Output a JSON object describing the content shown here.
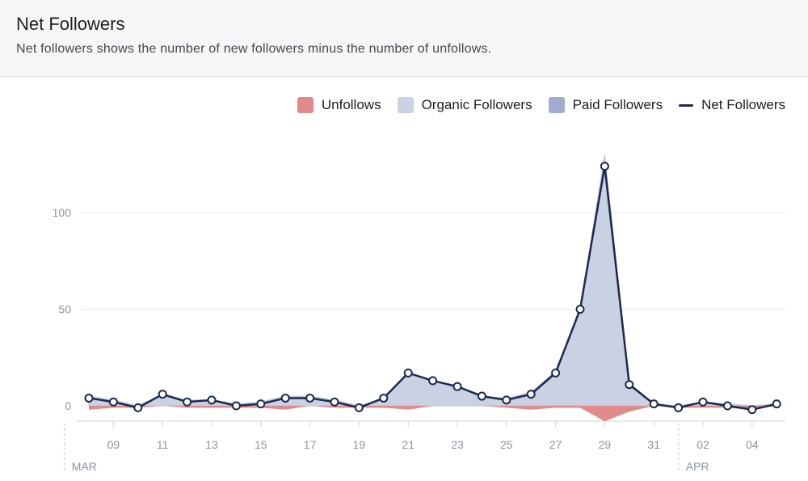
{
  "header": {
    "title": "Net Followers",
    "subtitle": "Net followers shows the number of new followers minus the number of unfollows."
  },
  "legend": [
    {
      "label": "Unfollows",
      "color": "#e08a8a",
      "kind": "box"
    },
    {
      "label": "Organic Followers",
      "color": "#c9d1e3",
      "kind": "box"
    },
    {
      "label": "Paid Followers",
      "color": "#a1adcc",
      "kind": "box"
    },
    {
      "label": "Net Followers",
      "color": "#1b2a4e",
      "kind": "line"
    }
  ],
  "chart_data": {
    "type": "area",
    "ylim": [
      -10,
      130
    ],
    "yticks": [
      0,
      50,
      100
    ],
    "x_ticks": [
      {
        "day": 9,
        "label": "09"
      },
      {
        "day": 11,
        "label": "11"
      },
      {
        "day": 13,
        "label": "13"
      },
      {
        "day": 15,
        "label": "15"
      },
      {
        "day": 17,
        "label": "17"
      },
      {
        "day": 19,
        "label": "19"
      },
      {
        "day": 21,
        "label": "21"
      },
      {
        "day": 23,
        "label": "23"
      },
      {
        "day": 25,
        "label": "25"
      },
      {
        "day": 27,
        "label": "27"
      },
      {
        "day": 29,
        "label": "29"
      },
      {
        "day": 31,
        "label": "31"
      },
      {
        "day": 33,
        "label": "02"
      },
      {
        "day": 35,
        "label": "04"
      }
    ],
    "month_markers": [
      {
        "day": 7.5,
        "label": "MAR"
      },
      {
        "day": 32.5,
        "label": "APR"
      }
    ],
    "x_days": [
      8,
      9,
      10,
      11,
      12,
      13,
      14,
      15,
      16,
      17,
      18,
      19,
      20,
      21,
      22,
      23,
      24,
      25,
      26,
      27,
      28,
      29,
      30,
      31,
      32,
      33,
      34,
      35,
      36
    ],
    "series": [
      {
        "name": "Organic Followers",
        "values": [
          5,
          3,
          0,
          6,
          3,
          3,
          1,
          2,
          5,
          5,
          3,
          0,
          4,
          17,
          13,
          10,
          5,
          4,
          7,
          18,
          50,
          130,
          12,
          1,
          0,
          2,
          1,
          0,
          1
        ]
      },
      {
        "name": "Unfollows",
        "values": [
          -2,
          -1,
          -1,
          0,
          -1,
          -1,
          -1,
          -1,
          -2,
          0,
          -1,
          -1,
          -1,
          -2,
          0,
          0,
          0,
          -1,
          -2,
          -1,
          -1,
          -8,
          -3,
          0,
          -1,
          -1,
          -1,
          -2,
          0
        ]
      },
      {
        "name": "Net Followers",
        "values": [
          4,
          2,
          -1,
          6,
          2,
          3,
          0,
          1,
          4,
          4,
          2,
          -1,
          4,
          17,
          13,
          10,
          5,
          3,
          6,
          17,
          50,
          124,
          11,
          1,
          -1,
          2,
          0,
          -2,
          1
        ]
      }
    ]
  }
}
